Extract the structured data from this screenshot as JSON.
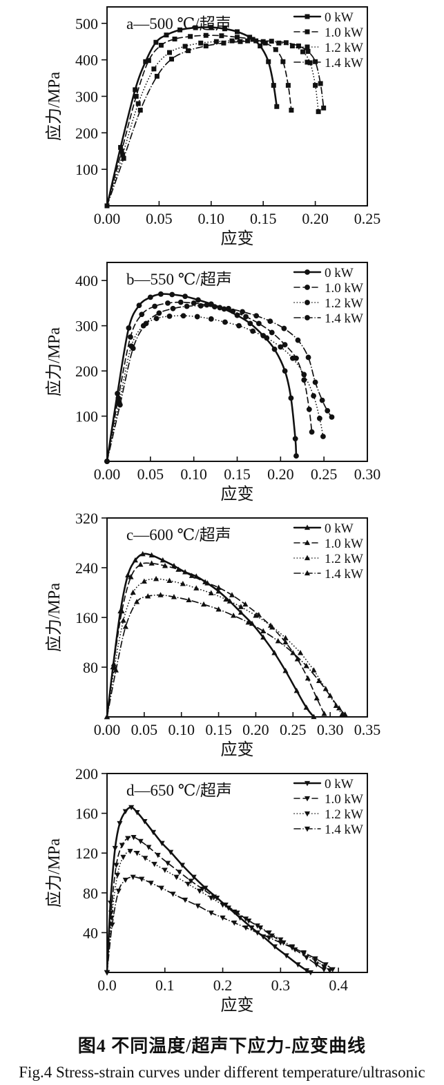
{
  "figure": {
    "caption_zh": "图4  不同温度/超声下应力-应变曲线",
    "caption_en": "Fig.4  Stress-strain curves under different temperature/ultrasonic"
  },
  "chart_data": [
    {
      "type": "line",
      "panel": "a",
      "title": "a—500 ℃/超声",
      "xlabel": "应变",
      "ylabel": "应力/MPa",
      "color": "#111111",
      "marker": "square",
      "legend_position": "top-right",
      "grid": false,
      "xlim": [
        0,
        0.25
      ],
      "ylim": [
        0,
        545
      ],
      "xticks": [
        {
          "v": 0.0,
          "label": "0.00"
        },
        {
          "v": 0.05,
          "label": "0.05"
        },
        {
          "v": 0.1,
          "label": "0.10"
        },
        {
          "v": 0.15,
          "label": "0.15"
        },
        {
          "v": 0.2,
          "label": "0.20"
        },
        {
          "v": 0.25,
          "label": "0.25"
        }
      ],
      "yticks": [
        {
          "v": 100,
          "label": "100"
        },
        {
          "v": 200,
          "label": "200"
        },
        {
          "v": 300,
          "label": "300"
        },
        {
          "v": 400,
          "label": "400"
        },
        {
          "v": 500,
          "label": "500"
        }
      ],
      "series": [
        {
          "name": "0 kW",
          "line": "solid",
          "x": [
            0,
            0.013,
            0.027,
            0.037,
            0.047,
            0.057,
            0.07,
            0.085,
            0.1,
            0.113,
            0.125,
            0.137,
            0.147,
            0.155,
            0.16,
            0.163
          ],
          "y": [
            0,
            160,
            318,
            395,
            448,
            468,
            482,
            488,
            489,
            485,
            477,
            462,
            438,
            395,
            330,
            272
          ]
        },
        {
          "name": "1.0 kW",
          "line": "dashed",
          "x": [
            0,
            0.014,
            0.028,
            0.04,
            0.052,
            0.065,
            0.08,
            0.095,
            0.11,
            0.125,
            0.14,
            0.152,
            0.162,
            0.169,
            0.174,
            0.177
          ],
          "y": [
            0,
            150,
            300,
            398,
            440,
            457,
            464,
            467,
            466,
            462,
            456,
            446,
            428,
            395,
            330,
            262
          ]
        },
        {
          "name": "1.2 kW",
          "line": "dotted",
          "x": [
            0,
            0.015,
            0.03,
            0.045,
            0.06,
            0.075,
            0.09,
            0.105,
            0.12,
            0.135,
            0.15,
            0.165,
            0.178,
            0.188,
            0.195,
            0.2,
            0.203
          ],
          "y": [
            0,
            140,
            280,
            375,
            420,
            437,
            446,
            450,
            452,
            452,
            450,
            446,
            438,
            422,
            392,
            330,
            258
          ]
        },
        {
          "name": "1.4 kW",
          "line": "dashdot",
          "x": [
            0,
            0.016,
            0.032,
            0.048,
            0.062,
            0.078,
            0.095,
            0.112,
            0.128,
            0.143,
            0.158,
            0.172,
            0.184,
            0.193,
            0.2,
            0.205,
            0.208
          ],
          "y": [
            0,
            130,
            262,
            355,
            402,
            425,
            438,
            446,
            450,
            452,
            451,
            447,
            438,
            423,
            395,
            335,
            268
          ]
        }
      ]
    },
    {
      "type": "line",
      "panel": "b",
      "title": "b—550 ℃/超声",
      "xlabel": "应变",
      "ylabel": "应力/MPa",
      "color": "#111111",
      "marker": "circle",
      "legend_position": "top-right",
      "grid": false,
      "xlim": [
        0,
        0.3
      ],
      "ylim": [
        0,
        440
      ],
      "xticks": [
        {
          "v": 0.0,
          "label": "0.00"
        },
        {
          "v": 0.05,
          "label": "0.05"
        },
        {
          "v": 0.1,
          "label": "0.10"
        },
        {
          "v": 0.15,
          "label": "0.15"
        },
        {
          "v": 0.2,
          "label": "0.20"
        },
        {
          "v": 0.25,
          "label": "0.25"
        },
        {
          "v": 0.3,
          "label": "0.30"
        }
      ],
      "yticks": [
        {
          "v": 100,
          "label": "100"
        },
        {
          "v": 200,
          "label": "200"
        },
        {
          "v": 300,
          "label": "300"
        },
        {
          "v": 400,
          "label": "400"
        }
      ],
      "series": [
        {
          "name": "0 kW",
          "line": "solid",
          "x": [
            0,
            0.012,
            0.025,
            0.037,
            0.05,
            0.062,
            0.075,
            0.09,
            0.105,
            0.12,
            0.135,
            0.15,
            0.165,
            0.18,
            0.193,
            0.205,
            0.212,
            0.217,
            0.218
          ],
          "y": [
            0,
            150,
            295,
            345,
            363,
            370,
            369,
            365,
            357,
            348,
            337,
            323,
            305,
            278,
            248,
            200,
            140,
            50,
            12
          ]
        },
        {
          "name": "1.0 kW",
          "line": "dashed",
          "x": [
            0,
            0.013,
            0.027,
            0.04,
            0.055,
            0.07,
            0.085,
            0.1,
            0.115,
            0.13,
            0.145,
            0.16,
            0.175,
            0.19,
            0.205,
            0.218,
            0.227,
            0.233,
            0.236
          ],
          "y": [
            0,
            140,
            275,
            325,
            343,
            350,
            352,
            350,
            346,
            340,
            332,
            320,
            305,
            285,
            258,
            228,
            180,
            115,
            65
          ]
        },
        {
          "name": "1.2 kW",
          "line": "dotted",
          "x": [
            0,
            0.014,
            0.028,
            0.042,
            0.057,
            0.072,
            0.088,
            0.104,
            0.12,
            0.136,
            0.152,
            0.168,
            0.184,
            0.2,
            0.214,
            0.227,
            0.238,
            0.245,
            0.249
          ],
          "y": [
            0,
            130,
            255,
            300,
            316,
            321,
            322,
            320,
            315,
            308,
            300,
            288,
            273,
            253,
            228,
            192,
            145,
            95,
            55
          ]
        },
        {
          "name": "1.4 kW",
          "line": "dashdot",
          "x": [
            0,
            0.015,
            0.03,
            0.045,
            0.06,
            0.076,
            0.092,
            0.108,
            0.124,
            0.14,
            0.156,
            0.172,
            0.188,
            0.204,
            0.22,
            0.232,
            0.24,
            0.248,
            0.254,
            0.259
          ],
          "y": [
            0,
            125,
            250,
            305,
            328,
            338,
            343,
            344,
            342,
            338,
            331,
            322,
            310,
            294,
            268,
            230,
            175,
            135,
            112,
            98
          ]
        }
      ]
    },
    {
      "type": "line",
      "panel": "c",
      "title": "c—600 ℃/超声",
      "xlabel": "应变",
      "ylabel": "应力/MPa",
      "color": "#111111",
      "marker": "triangle-up",
      "legend_position": "top-right",
      "grid": false,
      "xlim": [
        0,
        0.35
      ],
      "ylim": [
        0,
        320
      ],
      "xticks": [
        {
          "v": 0.0,
          "label": "0.00"
        },
        {
          "v": 0.05,
          "label": "0.05"
        },
        {
          "v": 0.1,
          "label": "0.10"
        },
        {
          "v": 0.15,
          "label": "0.15"
        },
        {
          "v": 0.2,
          "label": "0.20"
        },
        {
          "v": 0.25,
          "label": "0.25"
        },
        {
          "v": 0.3,
          "label": "0.30"
        },
        {
          "v": 0.35,
          "label": "0.35"
        }
      ],
      "yticks": [
        {
          "v": 80,
          "label": "80"
        },
        {
          "v": 160,
          "label": "160"
        },
        {
          "v": 240,
          "label": "240"
        },
        {
          "v": 320,
          "label": "320"
        }
      ],
      "series": [
        {
          "name": "0 kW",
          "line": "solid",
          "x": [
            0,
            0.008,
            0.018,
            0.028,
            0.038,
            0.048,
            0.06,
            0.075,
            0.09,
            0.105,
            0.12,
            0.135,
            0.15,
            0.165,
            0.18,
            0.195,
            0.21,
            0.225,
            0.24,
            0.255,
            0.268,
            0.278
          ],
          "y": [
            0,
            80,
            170,
            228,
            252,
            262,
            260,
            252,
            243,
            233,
            226,
            215,
            202,
            186,
            168,
            150,
            128,
            103,
            74,
            42,
            15,
            0
          ]
        },
        {
          "name": "1.0 kW",
          "line": "dashed",
          "x": [
            0,
            0.009,
            0.02,
            0.032,
            0.045,
            0.06,
            0.078,
            0.096,
            0.114,
            0.132,
            0.15,
            0.168,
            0.186,
            0.204,
            0.222,
            0.24,
            0.256,
            0.27,
            0.282,
            0.292
          ],
          "y": [
            0,
            85,
            170,
            225,
            245,
            247,
            243,
            237,
            227,
            217,
            208,
            196,
            181,
            164,
            144,
            120,
            93,
            62,
            30,
            5
          ]
        },
        {
          "name": "1.2 kW",
          "line": "dotted",
          "x": [
            0,
            0.01,
            0.022,
            0.035,
            0.05,
            0.066,
            0.084,
            0.102,
            0.12,
            0.14,
            0.16,
            0.18,
            0.2,
            0.22,
            0.24,
            0.26,
            0.278,
            0.294,
            0.308,
            0.316
          ],
          "y": [
            0,
            80,
            155,
            200,
            218,
            222,
            219,
            214,
            207,
            199,
            189,
            177,
            163,
            147,
            127,
            103,
            75,
            45,
            18,
            4
          ]
        },
        {
          "name": "1.4 kW",
          "line": "dashdot",
          "x": [
            0,
            0.012,
            0.025,
            0.04,
            0.055,
            0.072,
            0.09,
            0.11,
            0.13,
            0.15,
            0.17,
            0.19,
            0.21,
            0.23,
            0.25,
            0.268,
            0.285,
            0.3,
            0.312,
            0.32
          ],
          "y": [
            0,
            75,
            145,
            185,
            194,
            196,
            193,
            188,
            181,
            173,
            163,
            152,
            138,
            122,
            103,
            82,
            58,
            34,
            14,
            4
          ]
        }
      ]
    },
    {
      "type": "line",
      "panel": "d",
      "title": "d—650 ℃/超声",
      "xlabel": "应变",
      "ylabel": "应力/MPa",
      "color": "#111111",
      "marker": "triangle-down",
      "legend_position": "top-right",
      "grid": false,
      "xlim": [
        0,
        0.45
      ],
      "ylim": [
        0,
        200
      ],
      "xticks": [
        {
          "v": 0.0,
          "label": "0.0"
        },
        {
          "v": 0.1,
          "label": "0.1"
        },
        {
          "v": 0.2,
          "label": "0.2"
        },
        {
          "v": 0.3,
          "label": "0.3"
        },
        {
          "v": 0.4,
          "label": "0.4"
        }
      ],
      "yticks": [
        {
          "v": 40,
          "label": "40"
        },
        {
          "v": 80,
          "label": "80"
        },
        {
          "v": 120,
          "label": "120"
        },
        {
          "v": 160,
          "label": "160"
        },
        {
          "v": 200,
          "label": "200"
        }
      ],
      "series": [
        {
          "name": "0 kW",
          "line": "solid",
          "x": [
            0,
            0.006,
            0.014,
            0.022,
            0.032,
            0.042,
            0.052,
            0.065,
            0.08,
            0.095,
            0.11,
            0.13,
            0.15,
            0.17,
            0.19,
            0.21,
            0.23,
            0.25,
            0.27,
            0.29,
            0.31,
            0.33,
            0.345,
            0.352
          ],
          "y": [
            0,
            70,
            125,
            150,
            162,
            166,
            161,
            152,
            141,
            130,
            121,
            108,
            96,
            85,
            75,
            65,
            55,
            45,
            36,
            26,
            17,
            8,
            2,
            0
          ]
        },
        {
          "name": "1.0 kW",
          "line": "dashed",
          "x": [
            0,
            0.007,
            0.016,
            0.026,
            0.036,
            0.046,
            0.058,
            0.072,
            0.088,
            0.105,
            0.125,
            0.145,
            0.165,
            0.185,
            0.205,
            0.225,
            0.245,
            0.265,
            0.285,
            0.305,
            0.325,
            0.345,
            0.362,
            0.375
          ],
          "y": [
            0,
            60,
            108,
            128,
            135,
            136,
            132,
            126,
            118,
            110,
            101,
            92,
            84,
            76,
            68,
            60,
            52,
            45,
            37,
            30,
            23,
            15,
            8,
            3
          ]
        },
        {
          "name": "1.2 kW",
          "line": "dotted",
          "x": [
            0,
            0.008,
            0.018,
            0.028,
            0.04,
            0.052,
            0.066,
            0.082,
            0.1,
            0.12,
            0.14,
            0.16,
            0.18,
            0.2,
            0.22,
            0.24,
            0.26,
            0.28,
            0.3,
            0.32,
            0.34,
            0.36,
            0.375,
            0.385
          ],
          "y": [
            0,
            55,
            98,
            116,
            122,
            120,
            115,
            109,
            103,
            96,
            89,
            82,
            75,
            68,
            61,
            54,
            47,
            40,
            33,
            26,
            19,
            12,
            6,
            2
          ]
        },
        {
          "name": "1.4 kW",
          "line": "dashdot",
          "x": [
            0,
            0.009,
            0.02,
            0.032,
            0.045,
            0.06,
            0.076,
            0.094,
            0.114,
            0.135,
            0.157,
            0.18,
            0.2,
            0.22,
            0.24,
            0.26,
            0.28,
            0.3,
            0.32,
            0.34,
            0.36,
            0.378,
            0.39
          ],
          "y": [
            0,
            48,
            82,
            93,
            96,
            94,
            90,
            85,
            79,
            73,
            67,
            60,
            55,
            50,
            45,
            40,
            35,
            30,
            25,
            20,
            14,
            8,
            3
          ]
        }
      ]
    }
  ]
}
